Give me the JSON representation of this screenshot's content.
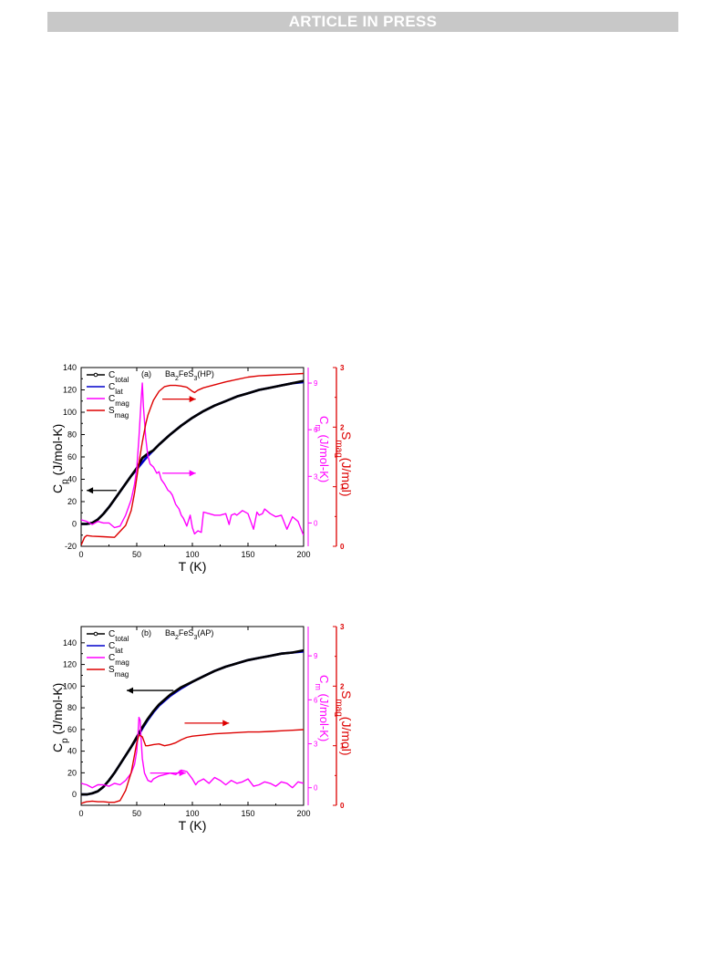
{
  "header": {
    "banner": "ARTICLE IN PRESS"
  },
  "chart_data": [
    {
      "type": "line",
      "panel_label": "(a)",
      "compound_parts": [
        "Ba",
        "2",
        "FeS",
        "3",
        "(HP)"
      ],
      "xlabel": "T (K)",
      "ylabel_left": [
        "C",
        "p",
        " (J/mol-K)"
      ],
      "ylabel_right_inner": [
        "C",
        "m",
        " (J/mol-K)"
      ],
      "ylabel_right_outer": [
        "S",
        "mag",
        "(J/mol)"
      ],
      "xlim": [
        0,
        200
      ],
      "ylim_left": [
        -20,
        140
      ],
      "ylim_cmag": [
        -1.5,
        10
      ],
      "ylim_smag": [
        0,
        3
      ],
      "xticks": [
        "0",
        "50",
        "100",
        "150",
        "200"
      ],
      "yticks_left": [
        "-20",
        "0",
        "20",
        "40",
        "60",
        "80",
        "100",
        "120",
        "140"
      ],
      "yticks_cmag": [
        "0",
        "3",
        "6",
        "9"
      ],
      "yticks_smag": [
        "0",
        "1",
        "2",
        "3"
      ],
      "legend": [
        {
          "main": "C",
          "sub": "total",
          "color": "#000000"
        },
        {
          "main": "C",
          "sub": "lat",
          "color": "#0000cc"
        },
        {
          "main": "C",
          "sub": "mag",
          "color": "#ff00ff"
        },
        {
          "main": "S",
          "sub": "mag",
          "color": "#dd0000"
        }
      ],
      "series": [
        {
          "name": "C_total",
          "axis": "left",
          "color": "#000000",
          "x": [
            0,
            5,
            10,
            15,
            20,
            25,
            30,
            35,
            40,
            45,
            50,
            55,
            60,
            65,
            70,
            80,
            90,
            100,
            110,
            120,
            130,
            140,
            150,
            160,
            170,
            180,
            190,
            200
          ],
          "y": [
            0,
            0,
            1,
            4,
            9,
            15,
            22,
            29,
            36,
            43,
            50,
            59,
            63,
            66,
            71,
            80,
            88,
            95,
            101,
            106,
            110,
            114,
            117,
            120,
            122,
            124,
            126,
            128
          ]
        },
        {
          "name": "C_lat",
          "axis": "left",
          "color": "#0000cc",
          "x": [
            0,
            5,
            10,
            15,
            20,
            25,
            30,
            35,
            40,
            45,
            50,
            55,
            60,
            65,
            70,
            80,
            90,
            100,
            110,
            120,
            130,
            140,
            150,
            160,
            170,
            180,
            190,
            200
          ],
          "y": [
            0,
            0,
            1,
            4,
            9,
            15,
            22,
            29,
            36,
            43,
            49,
            55,
            61,
            66,
            71,
            80,
            88,
            95,
            101,
            106,
            110,
            114,
            117,
            120,
            122,
            124,
            126,
            127
          ]
        },
        {
          "name": "C_mag",
          "axis": "cmag",
          "color": "#ff00ff",
          "x": [
            0,
            5,
            10,
            15,
            20,
            25,
            30,
            35,
            40,
            45,
            48,
            50,
            52,
            54,
            55,
            56,
            58,
            60,
            62,
            65,
            68,
            70,
            72,
            75,
            78,
            80,
            82,
            85,
            88,
            90,
            92,
            95,
            98,
            100,
            102,
            105,
            108,
            110,
            115,
            120,
            125,
            130,
            133,
            135,
            138,
            140,
            145,
            150,
            155,
            158,
            160,
            163,
            165,
            170,
            175,
            180,
            185,
            190,
            195,
            200
          ],
          "y": [
            0.2,
            0.1,
            -0.1,
            0.1,
            0.0,
            0.0,
            -0.3,
            -0.2,
            0.5,
            1.5,
            2.5,
            3.5,
            5.5,
            8.0,
            9.0,
            7.5,
            5.5,
            4.3,
            3.8,
            3.6,
            3.2,
            3.3,
            2.8,
            2.5,
            2.1,
            2.0,
            1.8,
            1.2,
            0.9,
            0.5,
            0.3,
            -0.2,
            0.5,
            -0.3,
            -0.7,
            -0.5,
            -0.6,
            0.7,
            0.6,
            0.5,
            0.5,
            0.6,
            -0.1,
            0.5,
            0.6,
            0.5,
            0.8,
            0.6,
            -0.4,
            0.7,
            0.5,
            0.6,
            0.9,
            0.6,
            0.4,
            0.5,
            -0.4,
            0.4,
            0.1,
            -0.8
          ]
        },
        {
          "name": "S_mag",
          "axis": "smag",
          "color": "#dd0000",
          "x": [
            0,
            3,
            5,
            10,
            20,
            30,
            40,
            45,
            48,
            50,
            52,
            55,
            58,
            60,
            62,
            65,
            70,
            75,
            80,
            85,
            90,
            95,
            100,
            102,
            105,
            110,
            120,
            130,
            140,
            150,
            160,
            170,
            180,
            190,
            200
          ],
          "y": [
            0.02,
            0.15,
            0.18,
            0.17,
            0.16,
            0.15,
            0.35,
            0.6,
            0.9,
            1.15,
            1.4,
            1.75,
            2.05,
            2.2,
            2.3,
            2.45,
            2.6,
            2.68,
            2.7,
            2.7,
            2.69,
            2.67,
            2.6,
            2.58,
            2.62,
            2.66,
            2.71,
            2.76,
            2.8,
            2.84,
            2.86,
            2.87,
            2.88,
            2.89,
            2.9
          ]
        }
      ],
      "arrows": [
        {
          "axis": "left",
          "x1": 32,
          "y1": 30,
          "x2": 5,
          "y2": 30,
          "color": "#000000"
        },
        {
          "axis": "smag",
          "x1": 73,
          "y1": 2.47,
          "x2": 103,
          "y2": 2.47,
          "color": "#dd0000"
        },
        {
          "axis": "cmag",
          "x1": 73,
          "y1": 3.2,
          "x2": 103,
          "y2": 3.2,
          "color": "#ff00ff"
        }
      ]
    },
    {
      "type": "line",
      "panel_label": "(b)",
      "compound_parts": [
        "Ba",
        "2",
        "FeS",
        "3",
        "(AP)"
      ],
      "xlabel": "T (K)",
      "ylabel_left": [
        "C",
        "p",
        " (J/mol-K)"
      ],
      "ylabel_right_inner": [
        "C",
        "m",
        " (J/mol-K)"
      ],
      "ylabel_right_outer": [
        "S",
        "mag",
        "(J/mol)"
      ],
      "xlim": [
        0,
        200
      ],
      "ylim_left": [
        -10,
        155
      ],
      "ylim_cmag": [
        -1.2,
        11
      ],
      "ylim_smag": [
        0,
        3
      ],
      "xticks": [
        "0",
        "50",
        "100",
        "150",
        "200"
      ],
      "yticks_left": [
        "0",
        "20",
        "40",
        "60",
        "80",
        "100",
        "120",
        "140"
      ],
      "yticks_cmag": [
        "0",
        "3",
        "6",
        "9"
      ],
      "yticks_smag": [
        "0",
        "1",
        "2",
        "3"
      ],
      "legend": [
        {
          "main": "C",
          "sub": "total",
          "color": "#000000"
        },
        {
          "main": "C",
          "sub": "lat",
          "color": "#0000cc"
        },
        {
          "main": "C",
          "sub": "mag",
          "color": "#ff00ff"
        },
        {
          "main": "S",
          "sub": "mag",
          "color": "#dd0000"
        }
      ],
      "series": [
        {
          "name": "C_total",
          "axis": "left",
          "color": "#000000",
          "x": [
            0,
            5,
            10,
            15,
            20,
            25,
            30,
            35,
            40,
            45,
            50,
            55,
            60,
            65,
            70,
            80,
            90,
            100,
            110,
            120,
            130,
            140,
            150,
            160,
            170,
            180,
            190,
            200
          ],
          "y": [
            0,
            0,
            1,
            3,
            7,
            13,
            20,
            28,
            36,
            44,
            53,
            62,
            70,
            77,
            83,
            92,
            99,
            104,
            109,
            114,
            118,
            121,
            124,
            126,
            128,
            130,
            131,
            133
          ]
        },
        {
          "name": "C_lat",
          "axis": "left",
          "color": "#0000cc",
          "x": [
            0,
            5,
            10,
            15,
            20,
            25,
            30,
            35,
            40,
            45,
            50,
            55,
            60,
            65,
            70,
            80,
            90,
            100,
            110,
            120,
            130,
            140,
            150,
            160,
            170,
            180,
            190,
            200
          ],
          "y": [
            0,
            0,
            1,
            3,
            7,
            13,
            20,
            28,
            36,
            44,
            52,
            61,
            69,
            76,
            82,
            91,
            98,
            104,
            109,
            114,
            118,
            121,
            124,
            126,
            128,
            130,
            131,
            132
          ]
        },
        {
          "name": "C_mag",
          "axis": "cmag",
          "color": "#ff00ff",
          "x": [
            0,
            5,
            10,
            15,
            20,
            25,
            30,
            35,
            40,
            45,
            48,
            50,
            51,
            52,
            53,
            54,
            55,
            57,
            60,
            63,
            65,
            70,
            75,
            80,
            85,
            90,
            95,
            100,
            103,
            105,
            110,
            115,
            120,
            125,
            130,
            135,
            140,
            145,
            150,
            155,
            160,
            165,
            170,
            175,
            180,
            185,
            190,
            195,
            200
          ],
          "y": [
            0.3,
            0.2,
            0.0,
            0.2,
            0.2,
            0.1,
            0.3,
            0.2,
            0.5,
            1.0,
            1.6,
            2.5,
            3.5,
            4.8,
            4.6,
            3.2,
            2.0,
            1.0,
            0.5,
            0.4,
            0.6,
            0.8,
            0.9,
            1.0,
            0.9,
            1.2,
            1.1,
            0.6,
            0.2,
            0.4,
            0.6,
            0.3,
            0.7,
            0.5,
            0.2,
            0.5,
            0.3,
            0.4,
            0.6,
            0.1,
            0.2,
            0.4,
            0.3,
            0.1,
            0.4,
            0.3,
            0.0,
            0.4,
            0.3
          ]
        },
        {
          "name": "S_mag",
          "axis": "smag",
          "color": "#dd0000",
          "x": [
            0,
            3,
            5,
            10,
            15,
            20,
            25,
            30,
            35,
            40,
            45,
            48,
            50,
            52,
            55,
            58,
            60,
            65,
            70,
            75,
            80,
            85,
            90,
            95,
            100,
            110,
            120,
            130,
            140,
            150,
            160,
            170,
            180,
            190,
            200
          ],
          "y": [
            0.03,
            0.05,
            0.06,
            0.07,
            0.06,
            0.06,
            0.05,
            0.05,
            0.08,
            0.25,
            0.55,
            0.85,
            1.05,
            1.18,
            1.15,
            1.0,
            1.0,
            1.02,
            1.03,
            1.0,
            1.02,
            1.05,
            1.1,
            1.14,
            1.16,
            1.18,
            1.2,
            1.21,
            1.22,
            1.23,
            1.23,
            1.24,
            1.25,
            1.26,
            1.27
          ]
        }
      ],
      "arrows": [
        {
          "axis": "left",
          "x1": 83,
          "y1": 96,
          "x2": 41,
          "y2": 96,
          "color": "#000000"
        },
        {
          "axis": "smag",
          "x1": 93,
          "y1": 1.38,
          "x2": 133,
          "y2": 1.38,
          "color": "#dd0000"
        },
        {
          "axis": "cmag",
          "x1": 62,
          "y1": 1.0,
          "x2": 94,
          "y2": 1.0,
          "color": "#ff00ff"
        }
      ]
    }
  ]
}
